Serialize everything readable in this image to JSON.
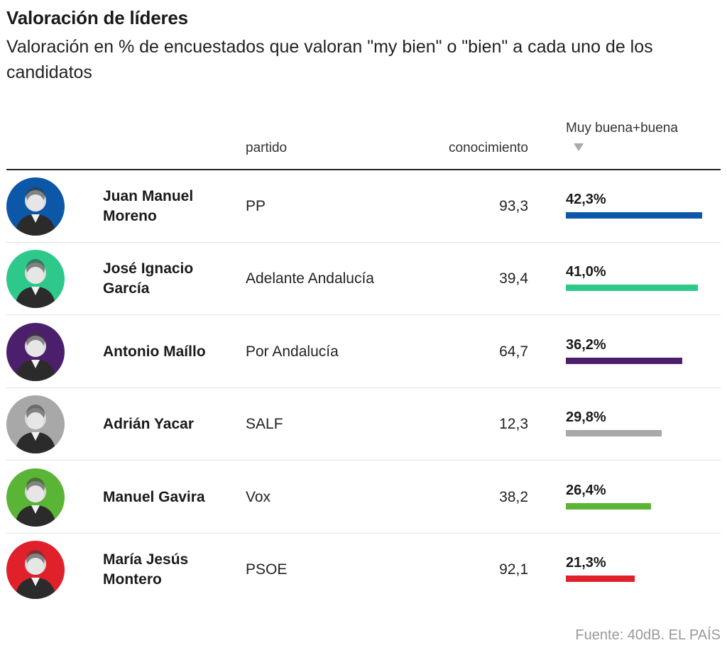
{
  "title": "Valoración de líderes",
  "subtitle": "Valoración en % de encuestados que valoran \"my bien\" o \"bien\" a cada uno de los candidatos",
  "headers": {
    "party": "partido",
    "knowledge": "conocimiento",
    "rating": "Muy buena+buena"
  },
  "source": "Fuente: 40dB. EL PAÍS",
  "chart_data": {
    "type": "table",
    "columns": [
      "",
      "partido",
      "conocimiento",
      "Muy buena+buena"
    ],
    "rows": [
      {
        "name": "Juan Manuel Moreno",
        "party": "PP",
        "knowledge": "93,3",
        "rating_label": "42,3%",
        "rating": 42.3,
        "color": "#0d57a8"
      },
      {
        "name": "José Ignacio García",
        "party": "Adelante Andalucía",
        "knowledge": "39,4",
        "rating_label": "41,0%",
        "rating": 41.0,
        "color": "#2ec88a"
      },
      {
        "name": "Antonio Maíllo",
        "party": "Por Andalucía",
        "knowledge": "64,7",
        "rating_label": "36,2%",
        "rating": 36.2,
        "color": "#4b1f6b"
      },
      {
        "name": "Adrián Yacar",
        "party": "SALF",
        "knowledge": "12,3",
        "rating_label": "29,8%",
        "rating": 29.8,
        "color": "#a8a8a8"
      },
      {
        "name": "Manuel Gavira",
        "party": "Vox",
        "knowledge": "38,2",
        "rating_label": "26,4%",
        "rating": 26.4,
        "color": "#5ab435"
      },
      {
        "name": "María Jesús Montero",
        "party": "PSOE",
        "knowledge": "92,1",
        "rating_label": "21,3%",
        "rating": 21.3,
        "color": "#e0202a"
      }
    ]
  }
}
